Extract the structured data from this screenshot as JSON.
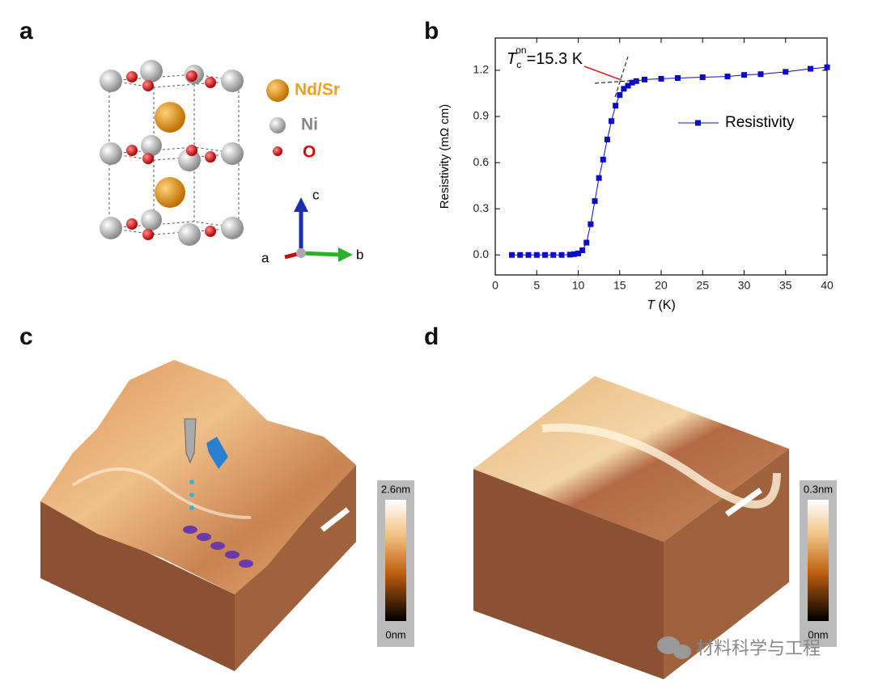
{
  "panels": {
    "a": {
      "label": "a",
      "legend": [
        "Nd/Sr",
        "Ni",
        "O"
      ],
      "axes": [
        "c",
        "a",
        "b"
      ]
    },
    "c": {
      "label": "c",
      "scale_max": "2.6nm",
      "scale_min": "0nm"
    },
    "d": {
      "label": "d",
      "scale_max": "0.3nm",
      "scale_min": "0nm"
    }
  },
  "watermark": "材料科学与工程",
  "chart_data": {
    "type": "line",
    "panel_label": "b",
    "x_label": {
      "symbol": "T",
      "unit": "(K)"
    },
    "y_label": "Resistivity (mΩ cm)",
    "annotation": {
      "symbol": "T",
      "sub": "c",
      "sup": "on",
      "text": "=15.3 K"
    },
    "x": [
      2,
      3,
      4,
      5,
      6,
      7,
      8,
      9,
      9.5,
      10,
      10.5,
      11,
      11.5,
      12,
      12.5,
      13,
      13.5,
      14,
      14.5,
      15,
      15.5,
      16,
      16.5,
      17,
      18,
      20,
      22,
      25,
      28,
      30,
      32,
      35,
      38,
      40
    ],
    "series": [
      {
        "name": "Resistivity",
        "color": "#0a0ac8",
        "values": [
          0,
          0,
          0,
          0,
          0,
          0,
          0,
          0.002,
          0.005,
          0.01,
          0.03,
          0.08,
          0.2,
          0.35,
          0.5,
          0.62,
          0.75,
          0.87,
          0.97,
          1.04,
          1.08,
          1.1,
          1.12,
          1.13,
          1.14,
          1.145,
          1.15,
          1.155,
          1.16,
          1.17,
          1.175,
          1.19,
          1.21,
          1.22
        ]
      }
    ],
    "xlim": [
      0,
      40
    ],
    "xticks": [
      0,
      5,
      10,
      15,
      20,
      25,
      30,
      35,
      40
    ],
    "ylim": [
      -0.13,
      1.41
    ],
    "yticks": [
      {
        "value": 0,
        "label": "0.0"
      },
      0.3,
      0.6,
      0.9,
      1.2
    ]
  }
}
